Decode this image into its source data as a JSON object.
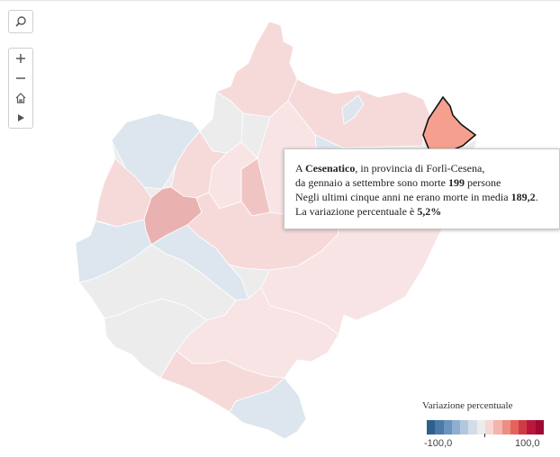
{
  "controls": {
    "search_icon": "search-icon",
    "zoom_in_icon": "plus-icon",
    "zoom_out_icon": "minus-icon",
    "home_icon": "home-icon",
    "play_icon": "play-icon"
  },
  "tooltip": {
    "line1_prefix": "A ",
    "comune": "Cesenatico",
    "line1_suffix": ", in provincia di Forlì-Cesena,",
    "line2_prefix": "da gennaio a settembre sono morte ",
    "deaths": "199",
    "line2_suffix": " persone",
    "line3_prefix": "Negli ultimi cinque anni ne erano morte in media ",
    "average": "189,2",
    "line3_suffix": ".",
    "line4_prefix": "La variazione percentuale è ",
    "variation": "5,2%"
  },
  "legend": {
    "title": "Variazione percentuale",
    "min_label": "-100,0",
    "max_label": "100,0",
    "colors": [
      "#2f5f8f",
      "#4b7aa8",
      "#6b94bf",
      "#8eaed2",
      "#b3c8df",
      "#d4dde7",
      "#ececec",
      "#f6d7d5",
      "#f3b4ad",
      "#ee8d83",
      "#e4645b",
      "#cf3b44",
      "#b8183c",
      "#9e0a33"
    ]
  },
  "map": {
    "highlight_color": "#f5a08f",
    "region_colors": {
      "neutral": "#ececec",
      "light_red": "#f6dada",
      "pale_red": "#f8e4e4",
      "red": "#f1c4c4",
      "mid_red": "#eab1b1",
      "light_blue": "#dde6ee",
      "blue": "#cfdae6"
    }
  }
}
